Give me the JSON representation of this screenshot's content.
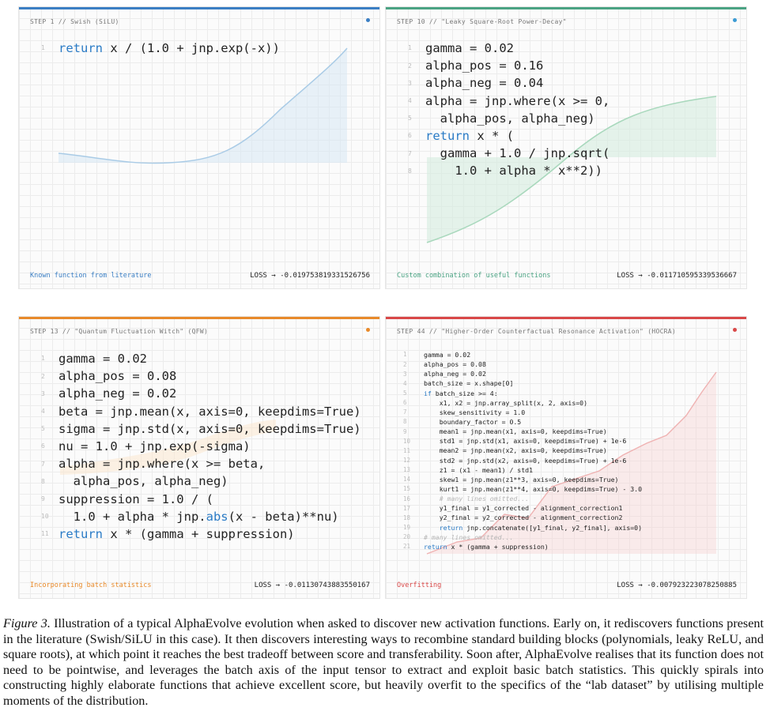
{
  "panels": [
    {
      "header": "STEP 1 // Swish (SiLU)",
      "accent": "#3b7fc4",
      "dot_color": "#3b7fc4",
      "code_size": "big",
      "code": [
        [
          {
            "t": "return",
            "c": "kw"
          },
          {
            "t": " x / (1.0 + jnp.exp(-x))"
          }
        ]
      ],
      "footer_label": "Known function from literature",
      "footer_color": "#3b7fc4",
      "loss_label": "LOSS",
      "loss_value": "-0.019753819331526756"
    },
    {
      "header": "STEP 10 // \"Leaky Square-Root Power-Decay\"",
      "accent": "#4aa383",
      "dot_color": "#3b9bd4",
      "code_size": "big",
      "code": [
        [
          {
            "t": "gamma = 0.02"
          }
        ],
        [
          {
            "t": "alpha_pos = 0.16"
          }
        ],
        [
          {
            "t": "alpha_neg = 0.04"
          }
        ],
        [
          {
            "t": "alpha = jnp.where(x >= 0,"
          }
        ],
        [
          {
            "t": "  alpha_pos, alpha_neg)"
          }
        ],
        [
          {
            "t": "return",
            "c": "kw"
          },
          {
            "t": " x * ("
          }
        ],
        [
          {
            "t": "  gamma + 1.0 / jnp.sqrt("
          }
        ],
        [
          {
            "t": "    1.0 + alpha * x**2))"
          }
        ]
      ],
      "footer_label": "Custom combination of useful functions",
      "footer_color": "#4aa383",
      "loss_label": "LOSS",
      "loss_value": "-0.011710595339536667"
    },
    {
      "header": "STEP 13 // \"Quantum Fluctuation Witch\" (QFW)",
      "accent": "#e88a2a",
      "dot_color": "#e88a2a",
      "code_size": "big",
      "code": [
        [
          {
            "t": "gamma = 0.02"
          }
        ],
        [
          {
            "t": "alpha_pos = 0.08"
          }
        ],
        [
          {
            "t": "alpha_neg = 0.02"
          }
        ],
        [
          {
            "t": "beta = jnp.mean(x, axis=0, keepdims=True)"
          }
        ],
        [
          {
            "t": "sigma = jnp.std(x, axis=0, keepdims=True)"
          }
        ],
        [
          {
            "t": "nu = 1.0 + jnp.exp(-sigma)"
          }
        ],
        [
          {
            "t": "alpha = jnp.where(x >= beta,"
          }
        ],
        [
          {
            "t": "  alpha_pos, alpha_neg)"
          }
        ],
        [
          {
            "t": "suppression = 1.0 / ("
          }
        ],
        [
          {
            "t": "  1.0 + alpha * jnp."
          },
          {
            "t": "abs",
            "c": "kw"
          },
          {
            "t": "(x - beta)**nu)"
          }
        ],
        [
          {
            "t": "return",
            "c": "kw"
          },
          {
            "t": " x * (gamma + suppression)"
          }
        ]
      ],
      "footer_label": "Incorporating batch statistics",
      "footer_color": "#e88a2a",
      "loss_label": "LOSS",
      "loss_value": "-0.01130743883550167"
    },
    {
      "header": "STEP 44 // \"Higher-Order Counterfactual Resonance Activation\" (HOCRA)",
      "accent": "#d94848",
      "dot_color": "#d94848",
      "code_size": "small",
      "code": [
        [
          {
            "t": "gamma = 0.02"
          }
        ],
        [
          {
            "t": "alpha_pos = 0.08"
          }
        ],
        [
          {
            "t": "alpha_neg = 0.02"
          }
        ],
        [
          {
            "t": "batch_size = x.shape[0]"
          }
        ],
        [
          {
            "t": "if",
            "c": "kw"
          },
          {
            "t": " batch_size >= 4:"
          }
        ],
        [
          {
            "t": "    x1, x2 = jnp.array_split(x, 2, axis=0)"
          }
        ],
        [
          {
            "t": "    skew_sensitivity = 1.0"
          }
        ],
        [
          {
            "t": "    boundary_factor = 0.5"
          }
        ],
        [
          {
            "t": "    mean1 = jnp.mean(x1, axis=0, keepdims=True)"
          }
        ],
        [
          {
            "t": "    std1 = jnp.std(x1, axis=0, keepdims=True) + 1e-6"
          }
        ],
        [
          {
            "t": "    mean2 = jnp.mean(x2, axis=0, keepdims=True)"
          }
        ],
        [
          {
            "t": "    std2 = jnp.std(x2, axis=0, keepdims=True) + 1e-6"
          }
        ],
        [
          {
            "t": "    z1 = (x1 - mean1) / std1"
          }
        ],
        [
          {
            "t": "    skew1 = jnp.mean(z1**3, axis=0, keepdims=True)"
          }
        ],
        [
          {
            "t": "    kurt1 = jnp.mean(z1**4, axis=0, keepdims=True) - 3.0"
          }
        ],
        [
          {
            "t": "    # many lines omitted...",
            "c": "cm"
          }
        ],
        [
          {
            "t": "    y1_final = y1_corrected - alignment_correction1"
          }
        ],
        [
          {
            "t": "    y2_final = y2_corrected - alignment_correction2"
          }
        ],
        [
          {
            "t": "    "
          },
          {
            "t": "return",
            "c": "kw"
          },
          {
            "t": " jnp.concatenate([y1_final, y2_final], axis=0)"
          }
        ],
        [
          {
            "t": "# many lines omitted...",
            "c": "cm"
          }
        ],
        [
          {
            "t": "return",
            "c": "kw"
          },
          {
            "t": " x * (gamma + suppression)"
          }
        ]
      ],
      "footer_label": "Overfitting",
      "footer_color": "#d94848",
      "loss_label": "LOSS",
      "loss_value": "-0.007923223078250885"
    }
  ],
  "caption": {
    "label": "Figure 3.",
    "text": "Illustration of a typical AlphaEvolve evolution when asked to discover new activation functions. Early on, it rediscovers functions present in the literature (Swish/SiLU in this case). It then discovers interesting ways to recombine standard building blocks (polynomials, leaky ReLU, and square roots), at which point it reaches the best tradeoff between score and transferability. Soon after, AlphaEvolve realises that its function does not need to be pointwise, and leverages the batch axis of the input tensor to extract and exploit basic batch statistics. This quickly spirals into constructing highly elaborate functions that achieve excellent score, but heavily overfit to the specifics of the “lab dataset” by utilising multiple moments of the distribution."
  }
}
